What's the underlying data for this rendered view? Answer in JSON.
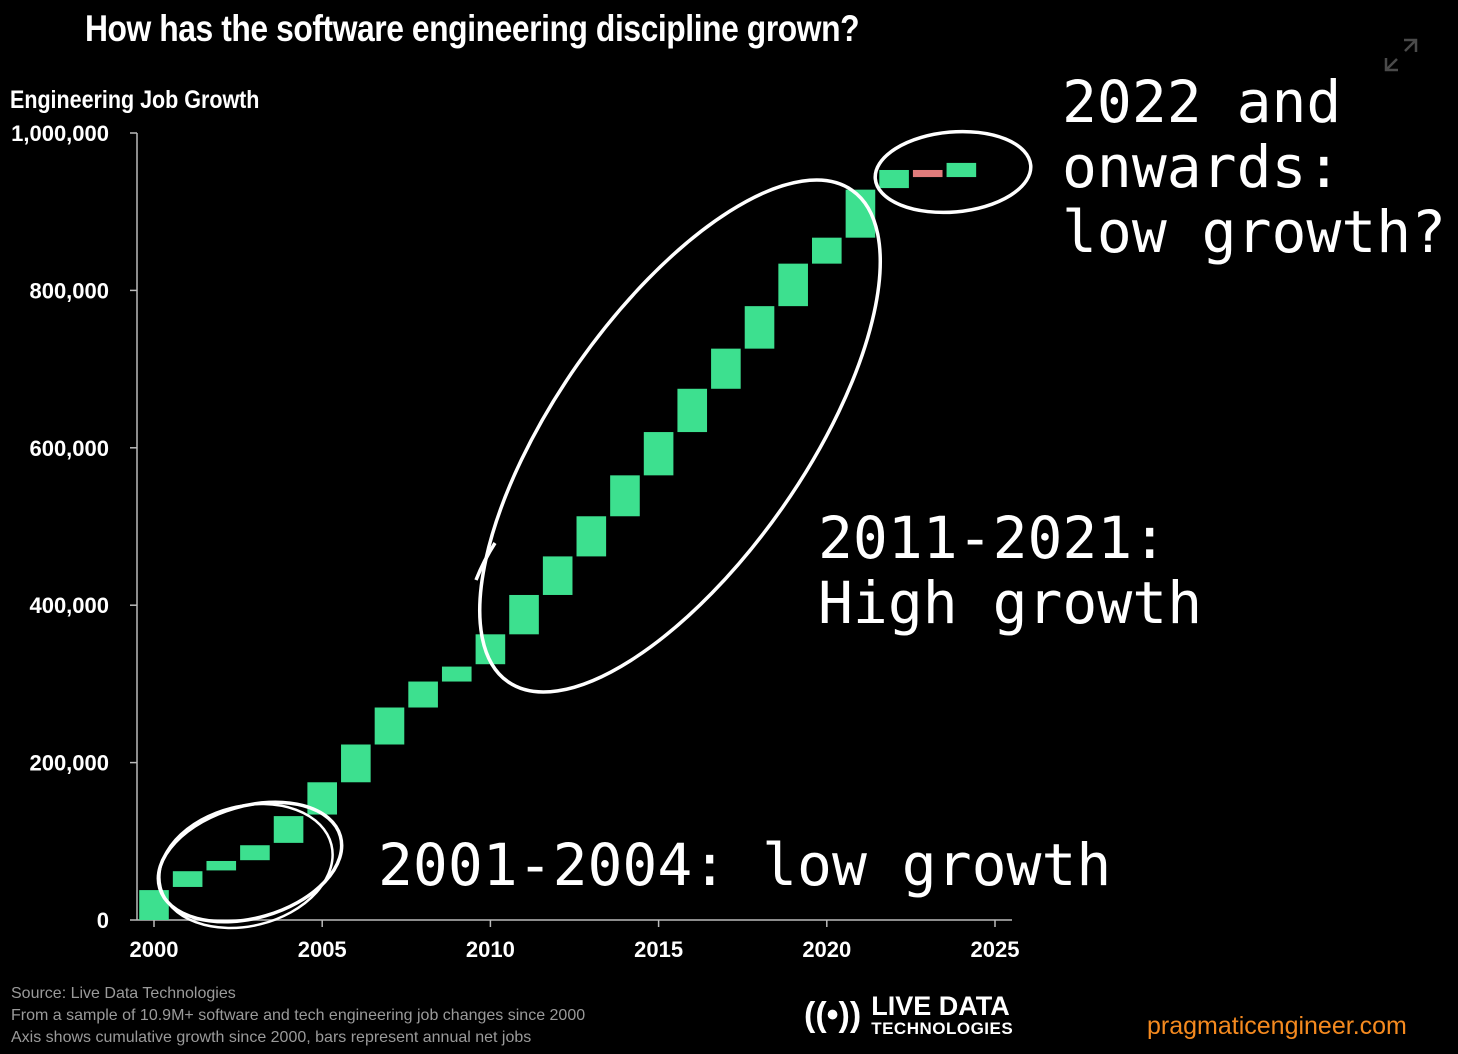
{
  "header": {
    "title": "How has the software engineering discipline grown?"
  },
  "chart_data": {
    "type": "bar",
    "subtype": "waterfall",
    "ylabel": "Engineering Job Growth",
    "xlabel": "",
    "ylim": [
      0,
      1000000
    ],
    "xlim": [
      2000,
      2025
    ],
    "x_ticks": [
      2000,
      2005,
      2010,
      2015,
      2020,
      2025
    ],
    "x_tick_labels": [
      "2000",
      "2005",
      "2010",
      "2015",
      "2020",
      "2025"
    ],
    "y_ticks": [
      0,
      200000,
      400000,
      600000,
      800000,
      1000000
    ],
    "y_tick_labels": [
      "0",
      "200,000",
      "400,000",
      "600,000",
      "800,000",
      "1,000,000"
    ],
    "grid": false,
    "positive_color": "#3de08f",
    "negative_color": "#e07b7b",
    "bars": [
      {
        "year": 2000,
        "start": 0,
        "end": 38000
      },
      {
        "year": 2001,
        "start": 42000,
        "end": 62000
      },
      {
        "year": 2002,
        "start": 63000,
        "end": 75000
      },
      {
        "year": 2003,
        "start": 76000,
        "end": 95000
      },
      {
        "year": 2004,
        "start": 98000,
        "end": 132000
      },
      {
        "year": 2005,
        "start": 134000,
        "end": 175000
      },
      {
        "year": 2006,
        "start": 175000,
        "end": 223000
      },
      {
        "year": 2007,
        "start": 223000,
        "end": 270000
      },
      {
        "year": 2008,
        "start": 270000,
        "end": 303000
      },
      {
        "year": 2009,
        "start": 303000,
        "end": 322000
      },
      {
        "year": 2010,
        "start": 325000,
        "end": 363000
      },
      {
        "year": 2011,
        "start": 363000,
        "end": 413000
      },
      {
        "year": 2012,
        "start": 413000,
        "end": 462000
      },
      {
        "year": 2013,
        "start": 462000,
        "end": 513000
      },
      {
        "year": 2014,
        "start": 513000,
        "end": 565000
      },
      {
        "year": 2015,
        "start": 565000,
        "end": 620000
      },
      {
        "year": 2016,
        "start": 620000,
        "end": 675000
      },
      {
        "year": 2017,
        "start": 675000,
        "end": 726000
      },
      {
        "year": 2018,
        "start": 726000,
        "end": 780000
      },
      {
        "year": 2019,
        "start": 780000,
        "end": 834000
      },
      {
        "year": 2020,
        "start": 834000,
        "end": 867000
      },
      {
        "year": 2021,
        "start": 867000,
        "end": 928000
      },
      {
        "year": 2022,
        "start": 930000,
        "end": 953000
      },
      {
        "year": 2023,
        "start": 953000,
        "end": 944000
      },
      {
        "year": 2024,
        "start": 944000,
        "end": 962000
      }
    ]
  },
  "annotations": {
    "late": "2022 and\nonwards:\nlow growth?",
    "mid": "2011-2021:\nHigh growth",
    "early": "2001-2004: low growth"
  },
  "footer": {
    "line1": "Source: Live Data Technologies",
    "line2": "From a sample of 10.9M+ software and tech engineering job changes since 2000",
    "line3": "Axis shows cumulative growth since 2000, bars represent annual net jobs"
  },
  "logo": {
    "icon": "((•))",
    "line1": "LIVE DATA",
    "line2": "TECHNOLOGIES"
  },
  "site": "pragmaticengineer.com",
  "icons": {
    "expand": "expand-icon"
  }
}
